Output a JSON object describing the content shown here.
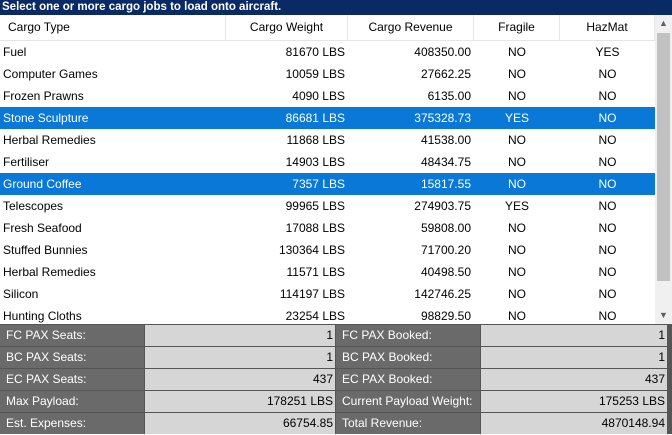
{
  "header": {
    "title": "Select one or more cargo jobs to load onto aircraft."
  },
  "columns": {
    "cargo_type": "Cargo Type",
    "cargo_weight": "Cargo Weight",
    "cargo_revenue": "Cargo Revenue",
    "fragile": "Fragile",
    "hazmat": "HazMat"
  },
  "rows": [
    {
      "type": "Fuel",
      "weight": "81670 LBS",
      "revenue": "408350.00",
      "fragile": "NO",
      "hazmat": "YES",
      "selected": false
    },
    {
      "type": "Computer Games",
      "weight": "10059 LBS",
      "revenue": "27662.25",
      "fragile": "NO",
      "hazmat": "NO",
      "selected": false
    },
    {
      "type": "Frozen Prawns",
      "weight": "4090 LBS",
      "revenue": "6135.00",
      "fragile": "NO",
      "hazmat": "NO",
      "selected": false
    },
    {
      "type": "Stone Sculpture",
      "weight": "86681 LBS",
      "revenue": "375328.73",
      "fragile": "YES",
      "hazmat": "NO",
      "selected": true
    },
    {
      "type": "Herbal Remedies",
      "weight": "11868 LBS",
      "revenue": "41538.00",
      "fragile": "NO",
      "hazmat": "NO",
      "selected": false
    },
    {
      "type": "Fertiliser",
      "weight": "14903 LBS",
      "revenue": "48434.75",
      "fragile": "NO",
      "hazmat": "NO",
      "selected": false
    },
    {
      "type": "Ground Coffee",
      "weight": "7357 LBS",
      "revenue": "15817.55",
      "fragile": "NO",
      "hazmat": "NO",
      "selected": true
    },
    {
      "type": "Telescopes",
      "weight": "99965 LBS",
      "revenue": "274903.75",
      "fragile": "YES",
      "hazmat": "NO",
      "selected": false
    },
    {
      "type": "Fresh Seafood",
      "weight": "17088 LBS",
      "revenue": "59808.00",
      "fragile": "NO",
      "hazmat": "NO",
      "selected": false
    },
    {
      "type": "Stuffed Bunnies",
      "weight": "130364 LBS",
      "revenue": "71700.20",
      "fragile": "NO",
      "hazmat": "NO",
      "selected": false
    },
    {
      "type": "Herbal Remedies",
      "weight": "11571 LBS",
      "revenue": "40498.50",
      "fragile": "NO",
      "hazmat": "NO",
      "selected": false
    },
    {
      "type": "Silicon",
      "weight": "114197 LBS",
      "revenue": "142746.25",
      "fragile": "NO",
      "hazmat": "NO",
      "selected": false
    },
    {
      "type": "Hunting Cloths",
      "weight": "23254 LBS",
      "revenue": "98829.50",
      "fragile": "NO",
      "hazmat": "NO",
      "selected": false
    }
  ],
  "scrollbar": {
    "up_icon": "scroll-up-arrow",
    "down_icon": "scroll-down-arrow"
  },
  "stats": {
    "fc_pax_seats_label": "FC PAX Seats:",
    "fc_pax_seats": "1",
    "fc_pax_booked_label": "FC PAX Booked:",
    "fc_pax_booked": "1",
    "bc_pax_seats_label": "BC PAX Seats:",
    "bc_pax_seats": "1",
    "bc_pax_booked_label": "BC PAX Booked:",
    "bc_pax_booked": "1",
    "ec_pax_seats_label": "EC PAX Seats:",
    "ec_pax_seats": "437",
    "ec_pax_booked_label": "EC PAX Booked:",
    "ec_pax_booked": "437",
    "max_payload_label": "Max Payload:",
    "max_payload": "178251 LBS",
    "current_payload_label": "Current Payload Weight:",
    "current_payload": "175253 LBS",
    "est_expenses_label": "Est. Expenses:",
    "est_expenses": "66754.85",
    "total_revenue_label": "Total Revenue:",
    "total_revenue": "4870148.94"
  },
  "colors": {
    "header_bg": "#0a2a66",
    "selection": "#0a78d7",
    "stat_label_bg": "#6a6a6a",
    "stat_value_bg": "#d6d6d6"
  }
}
